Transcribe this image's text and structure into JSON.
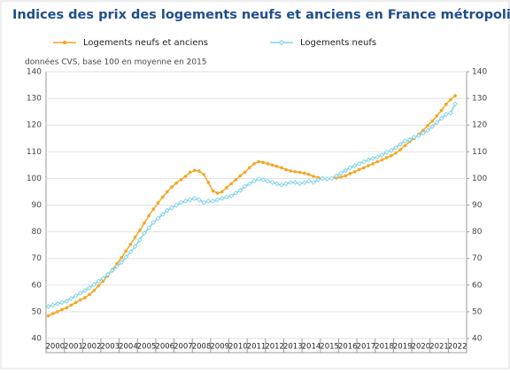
{
  "chart_data": {
    "type": "line",
    "title": "Indices des prix des logements neufs et anciens en France métropolitaine",
    "subtitle": "données CVS, base 100 en moyenne en 2015",
    "categories": [
      "2000",
      null,
      null,
      null,
      "2001",
      null,
      null,
      null,
      "2002",
      null,
      null,
      null,
      "2003",
      null,
      null,
      null,
      "2004",
      null,
      null,
      null,
      "2005",
      null,
      null,
      null,
      "2006",
      null,
      null,
      null,
      "2007",
      null,
      null,
      null,
      "2008",
      null,
      null,
      null,
      "2009",
      null,
      null,
      null,
      "2010",
      null,
      null,
      null,
      "2011",
      null,
      null,
      null,
      "2012",
      null,
      null,
      null,
      "2013",
      null,
      null,
      null,
      "2014",
      null,
      null,
      null,
      "2015",
      null,
      null,
      null,
      "2016",
      null,
      null,
      null,
      "2017",
      null,
      null,
      null,
      "2018",
      null,
      null,
      null,
      "2019",
      null,
      null,
      null,
      "2020",
      null,
      null,
      null,
      "2021",
      null,
      null,
      null,
      "2022",
      null,
      null,
      null
    ],
    "series": [
      {
        "name": "Logements neufs et anciens",
        "color": "#f5a623",
        "marker": "circle",
        "values": [
          48.5,
          49.3,
          50.0,
          50.8,
          51.5,
          52.5,
          53.5,
          54.5,
          55.3,
          56.5,
          58.0,
          59.8,
          61.5,
          63.5,
          65.8,
          68.0,
          70.3,
          72.8,
          75.3,
          78.0,
          80.5,
          83.3,
          86.0,
          88.5,
          90.8,
          93.0,
          95.0,
          96.8,
          98.3,
          99.5,
          100.8,
          102.3,
          103.0,
          102.8,
          101.5,
          98.5,
          95.3,
          94.5,
          95.0,
          96.5,
          98.0,
          99.5,
          101.0,
          102.3,
          104.0,
          105.5,
          106.3,
          106.0,
          105.5,
          105.0,
          104.5,
          104.0,
          103.3,
          102.8,
          102.5,
          102.3,
          102.0,
          101.5,
          100.8,
          100.3,
          100.0,
          99.8,
          100.0,
          100.2,
          100.5,
          101.0,
          101.8,
          102.5,
          103.3,
          104.0,
          104.8,
          105.5,
          106.3,
          107.0,
          107.8,
          108.5,
          109.5,
          110.8,
          112.3,
          113.8,
          115.0,
          116.5,
          118.0,
          119.8,
          121.5,
          123.5,
          125.5,
          127.8,
          129.5,
          131.0,
          null,
          null
        ]
      },
      {
        "name": "Logements neufs",
        "color": "#7fd3e6",
        "marker": "diamond",
        "values": [
          52.0,
          52.5,
          53.0,
          53.5,
          54.0,
          55.0,
          56.0,
          57.0,
          58.0,
          59.0,
          60.2,
          61.5,
          62.5,
          64.0,
          65.5,
          67.0,
          68.5,
          70.5,
          72.5,
          74.5,
          77.0,
          79.5,
          81.5,
          83.5,
          85.0,
          86.5,
          88.0,
          89.0,
          90.0,
          91.0,
          91.5,
          92.0,
          92.5,
          92.0,
          91.0,
          91.5,
          91.5,
          92.0,
          92.5,
          93.0,
          93.5,
          94.5,
          95.5,
          97.0,
          98.0,
          99.0,
          99.8,
          99.5,
          99.0,
          98.5,
          98.0,
          97.5,
          98.0,
          98.5,
          98.5,
          98.0,
          98.5,
          99.0,
          98.5,
          99.5,
          100.0,
          99.8,
          100.0,
          101.0,
          102.0,
          103.0,
          104.0,
          104.8,
          105.5,
          106.3,
          107.0,
          107.5,
          108.0,
          108.8,
          109.8,
          110.5,
          111.5,
          112.8,
          114.0,
          114.5,
          115.5,
          116.0,
          117.0,
          118.0,
          119.5,
          121.0,
          122.5,
          124.0,
          124.5,
          128.0,
          null,
          null
        ]
      }
    ],
    "ylim": [
      40,
      140
    ],
    "yticks": [
      40,
      50,
      60,
      70,
      80,
      90,
      100,
      110,
      120,
      130,
      140
    ],
    "y2lim": [
      40,
      140
    ],
    "y2ticks": [
      40,
      50,
      60,
      70,
      80,
      90,
      100,
      110,
      120,
      130,
      140
    ],
    "grid": true
  }
}
